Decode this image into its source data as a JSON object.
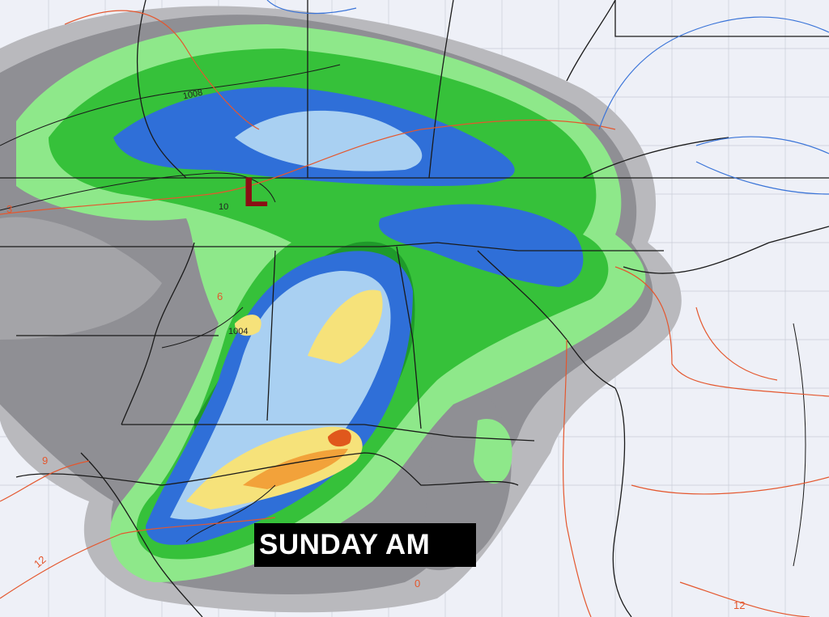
{
  "overlay_title": "SUNDAY AM",
  "low_pressure_marker": "L",
  "isobar_labels": [
    "1008",
    "1004",
    "10"
  ],
  "temperature_labels": [
    "12",
    "9",
    "6",
    "3",
    "0",
    "12"
  ],
  "colors": {
    "background": "#eef0f7",
    "no_precip_gray": "#8f8f94",
    "light_gray": "#b9b9bd",
    "light_green": "#8ee88a",
    "green": "#36c13a",
    "dark_green": "#1f9a2a",
    "blue": "#2f6fd8",
    "light_blue": "#a9d0f2",
    "yellow": "#f6e27a",
    "orange": "#f2a23a",
    "red_orange": "#e0581c",
    "low_marker": "#8b0f14",
    "isobar": "#1a1a1a",
    "temperature_contour": "#e4572e",
    "freezing_line": "#3a74d8"
  }
}
